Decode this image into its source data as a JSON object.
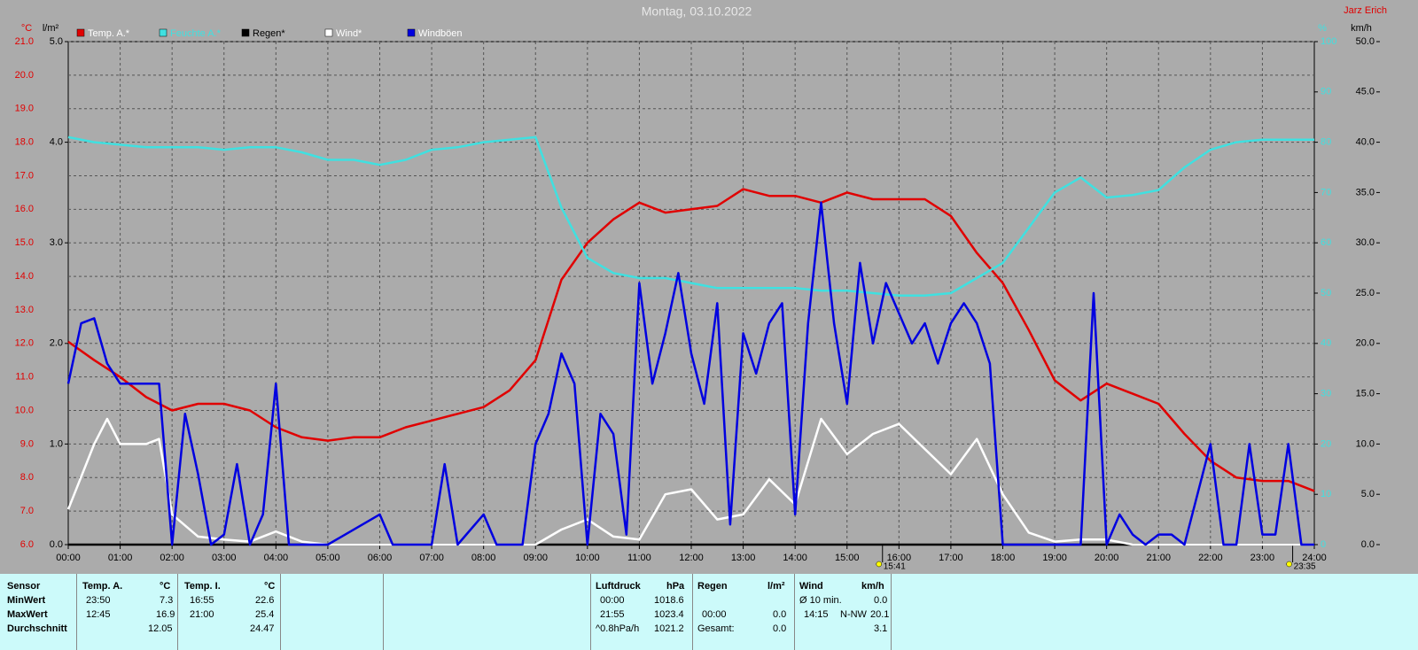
{
  "chart_data": {
    "type": "line",
    "title": "Montag, 03.10.2022",
    "author": "Jarz Erich",
    "units": {
      "temp": "°C",
      "rain": "l/m²",
      "humidity": "%",
      "wind": "km/h"
    },
    "grid": true,
    "ylim": [
      6,
      21
    ],
    "yticks": [
      {
        "value": 6,
        "label": "6.0"
      },
      {
        "value": 7,
        "label": "7.0"
      },
      {
        "value": 8,
        "label": "8.0"
      },
      {
        "value": 9,
        "label": "9.0"
      },
      {
        "value": 10,
        "label": "10.0"
      },
      {
        "value": 11,
        "label": "11.0"
      },
      {
        "value": 12,
        "label": "12.0"
      },
      {
        "value": 13,
        "label": "13.0"
      },
      {
        "value": 14,
        "label": "14.0"
      },
      {
        "value": 15,
        "label": "15.0"
      },
      {
        "value": 16,
        "label": "16.0"
      },
      {
        "value": 17,
        "label": "17.0"
      },
      {
        "value": 18,
        "label": "18.0"
      },
      {
        "value": 19,
        "label": "19.0"
      },
      {
        "value": 20,
        "label": "20.0"
      },
      {
        "value": 21,
        "label": "21.0"
      }
    ],
    "y_rain_lim": [
      0,
      5
    ],
    "y_rain_ticks": [
      {
        "value": 0,
        "label": "0.0"
      },
      {
        "value": 1,
        "label": "1.0"
      },
      {
        "value": 2,
        "label": "2.0"
      },
      {
        "value": 3,
        "label": "3.0"
      },
      {
        "value": 4,
        "label": "4.0"
      },
      {
        "value": 5,
        "label": "5.0"
      }
    ],
    "y2lim": [
      0,
      100
    ],
    "y2ticks": [
      0,
      10,
      20,
      30,
      40,
      50,
      60,
      70,
      80,
      90,
      100
    ],
    "y3lim": [
      0,
      50
    ],
    "y3ticks": [
      {
        "value": 0,
        "label": "0.0"
      },
      {
        "value": 5,
        "label": "5.0"
      },
      {
        "value": 10,
        "label": "10.0"
      },
      {
        "value": 15,
        "label": "15.0"
      },
      {
        "value": 20,
        "label": "20.0"
      },
      {
        "value": 25,
        "label": "25.0"
      },
      {
        "value": 30,
        "label": "30.0"
      },
      {
        "value": 35,
        "label": "35.0"
      },
      {
        "value": 40,
        "label": "40.0"
      },
      {
        "value": 45,
        "label": "45.0"
      },
      {
        "value": 50,
        "label": "50.0"
      }
    ],
    "xlim": [
      0,
      24
    ],
    "xticks": [
      {
        "value": 0,
        "label": "00:00"
      },
      {
        "value": 1,
        "label": "01:00"
      },
      {
        "value": 2,
        "label": "02:00"
      },
      {
        "value": 3,
        "label": "03:00"
      },
      {
        "value": 4,
        "label": "04:00"
      },
      {
        "value": 5,
        "label": "05:00"
      },
      {
        "value": 6,
        "label": "06:00"
      },
      {
        "value": 7,
        "label": "07:00"
      },
      {
        "value": 8,
        "label": "08:00"
      },
      {
        "value": 9,
        "label": "09:00"
      },
      {
        "value": 10,
        "label": "10:00"
      },
      {
        "value": 11,
        "label": "11:00"
      },
      {
        "value": 12,
        "label": "12:00"
      },
      {
        "value": 13,
        "label": "13:00"
      },
      {
        "value": 14,
        "label": "14:00"
      },
      {
        "value": 15,
        "label": "15:00"
      },
      {
        "value": 16,
        "label": "16:00"
      },
      {
        "value": 17,
        "label": "17:00"
      },
      {
        "value": 18,
        "label": "18:00"
      },
      {
        "value": 19,
        "label": "19:00"
      },
      {
        "value": 20,
        "label": "20:00"
      },
      {
        "value": 21,
        "label": "21:00"
      },
      {
        "value": 22,
        "label": "22:00"
      },
      {
        "value": 23,
        "label": "23:00"
      },
      {
        "value": 24,
        "label": "24:00"
      }
    ],
    "markers": [
      {
        "value": 15.683,
        "label": "15:41"
      },
      {
        "value": 23.583,
        "label": "23:35"
      }
    ],
    "series": [
      {
        "name": "Temp. A.*",
        "color": "#e00000",
        "axis": "y",
        "x": [
          0,
          0.5,
          1,
          1.5,
          2,
          2.5,
          3,
          3.5,
          4,
          4.5,
          5,
          5.5,
          6,
          6.5,
          7,
          7.5,
          8,
          8.5,
          9,
          9.5,
          10,
          10.5,
          11,
          11.5,
          12,
          12.5,
          13,
          13.5,
          14,
          14.5,
          15,
          15.5,
          16,
          16.5,
          17,
          17.5,
          18,
          18.5,
          19,
          19.5,
          20,
          20.5,
          21,
          21.5,
          22,
          22.5,
          23,
          23.5,
          24
        ],
        "values": [
          12.05,
          11.5,
          11.0,
          10.4,
          10.0,
          10.2,
          10.2,
          10.0,
          9.5,
          9.2,
          9.1,
          9.2,
          9.2,
          9.5,
          9.7,
          9.9,
          10.1,
          10.6,
          11.5,
          13.9,
          15.0,
          15.7,
          16.2,
          15.9,
          16.0,
          16.1,
          16.6,
          16.4,
          16.4,
          16.2,
          16.5,
          16.3,
          16.3,
          16.3,
          15.8,
          14.7,
          13.8,
          12.4,
          10.9,
          10.3,
          10.8,
          10.5,
          10.2,
          9.3,
          8.5,
          8.0,
          7.9,
          7.9,
          7.6
        ]
      },
      {
        "name": "Feuchte A.*",
        "color": "#40e0e0",
        "axis": "y2",
        "x": [
          0,
          0.5,
          1,
          1.5,
          2,
          2.5,
          3,
          3.5,
          4,
          4.5,
          5,
          5.5,
          6,
          6.5,
          7,
          7.5,
          8,
          8.5,
          9,
          9.5,
          10,
          10.5,
          11,
          11.5,
          12,
          12.5,
          13,
          13.5,
          14,
          14.5,
          15,
          15.5,
          16,
          16.5,
          17,
          17.5,
          18,
          18.5,
          19,
          19.5,
          20,
          20.5,
          21,
          21.5,
          22,
          22.5,
          23,
          23.5,
          24
        ],
        "values": [
          81,
          80,
          79.5,
          79,
          79,
          79,
          78.5,
          79,
          79,
          78,
          76.5,
          76.5,
          75.5,
          76.5,
          78.5,
          79,
          80,
          80.5,
          81,
          67,
          57,
          54,
          53,
          53,
          52,
          51,
          51,
          51,
          51,
          50.5,
          50.5,
          50,
          49.5,
          49.5,
          50,
          53,
          56,
          63,
          70,
          73,
          69,
          69.5,
          70.5,
          75,
          78.5,
          80,
          80.5,
          80.5,
          80.5
        ]
      },
      {
        "name": "Regen*",
        "color": "#000000",
        "axis": "rain",
        "x": [
          0,
          24
        ],
        "values": [
          0,
          0
        ]
      },
      {
        "name": "Wind*",
        "color": "#ffffff",
        "axis": "y3",
        "x": [
          0,
          0.5,
          0.75,
          1,
          1.5,
          1.75,
          2,
          2.5,
          3,
          3.5,
          4,
          4.5,
          5,
          6,
          7,
          8,
          9,
          9.5,
          10,
          10.5,
          11,
          11.5,
          12,
          12.5,
          13,
          13.5,
          14,
          14.5,
          15,
          15.5,
          16,
          16.5,
          17,
          17.5,
          18,
          18.5,
          19,
          19.5,
          20,
          20.5,
          21,
          22,
          23,
          24
        ],
        "values": [
          3.5,
          10,
          12.5,
          10,
          10,
          10.5,
          3,
          0.8,
          0.5,
          0.3,
          1.3,
          0.3,
          0,
          0,
          0,
          0,
          0,
          1.5,
          2.5,
          0.8,
          0.5,
          5,
          5.5,
          2.5,
          3,
          6.5,
          4,
          12.5,
          9,
          11,
          12,
          9.5,
          7,
          10.5,
          5,
          1.2,
          0.3,
          0.5,
          0.5,
          0,
          0,
          0,
          0,
          0
        ]
      },
      {
        "name": "Windböen",
        "color": "#0000e0",
        "axis": "y3",
        "x": [
          0,
          0.25,
          0.5,
          0.75,
          1,
          1.5,
          1.75,
          2,
          2.25,
          2.5,
          2.75,
          3,
          3.25,
          3.5,
          3.75,
          4,
          4.25,
          5,
          6,
          6.25,
          7,
          7.25,
          7.5,
          8,
          8.25,
          8.75,
          9,
          9.25,
          9.5,
          9.75,
          10,
          10.25,
          10.5,
          10.75,
          11,
          11.25,
          11.5,
          11.75,
          12,
          12.25,
          12.5,
          12.75,
          13,
          13.25,
          13.5,
          13.75,
          14,
          14.25,
          14.5,
          14.75,
          15,
          15.25,
          15.5,
          15.75,
          16,
          16.25,
          16.5,
          16.75,
          17,
          17.25,
          17.5,
          17.75,
          18,
          18.5,
          19,
          19.5,
          19.75,
          20,
          20.25,
          20.5,
          20.75,
          21,
          21.25,
          21.5,
          22,
          22.25,
          22.5,
          22.75,
          23,
          23.25,
          23.5,
          23.75,
          24
        ],
        "values": [
          16,
          22,
          22.5,
          18,
          16,
          16,
          16,
          0,
          13,
          7,
          0,
          1,
          8,
          0,
          3,
          16,
          0,
          0,
          3,
          0,
          0,
          8,
          0,
          3,
          0,
          0,
          10,
          13,
          19,
          16,
          0,
          13,
          11,
          1,
          26,
          16,
          21,
          27,
          19,
          14,
          24,
          2,
          21,
          17,
          22,
          24,
          3,
          22,
          34,
          22,
          14,
          28,
          20,
          26,
          23,
          20,
          22,
          18,
          22,
          24,
          22,
          18,
          0,
          0,
          0,
          0,
          25,
          0,
          3,
          1,
          0,
          1,
          1,
          0,
          10,
          0,
          0,
          10,
          1,
          1,
          10,
          0,
          0
        ]
      }
    ]
  },
  "table": {
    "sensor": {
      "header": "Sensor",
      "rows": [
        "MinWert",
        "MaxWert",
        "Durchschnitt"
      ]
    },
    "temp_a": {
      "header": "Temp. A.",
      "unit": "°C",
      "min_time": "23:50",
      "min": "7.3",
      "max_time": "12:45",
      "max": "16.9",
      "avg": "12.05"
    },
    "temp_i": {
      "header": "Temp. I.",
      "unit": "°C",
      "min_time": "16:55",
      "min": "22.6",
      "max_time": "21:00",
      "max": "25.4",
      "avg": "24.47"
    },
    "pressure": {
      "header": "Luftdruck",
      "unit": "hPa",
      "min_time": "00:00",
      "min": "1018.6",
      "max_time": "21:55",
      "max": "1023.4",
      "trend": "^0.8hPa/h",
      "avg": "1021.2"
    },
    "rain": {
      "header": "Regen",
      "unit": "l/m²",
      "max_time": "00:00",
      "max": "0.0",
      "total_label": "Gesamt:",
      "total": "0.0"
    },
    "wind": {
      "header": "Wind",
      "unit": "km/h",
      "avg_label": "Ø 10 min.",
      "avg": "0.0",
      "max_time": "14:15",
      "max_dir": "N-NW",
      "max": "20.1",
      "mean": "3.1"
    }
  }
}
